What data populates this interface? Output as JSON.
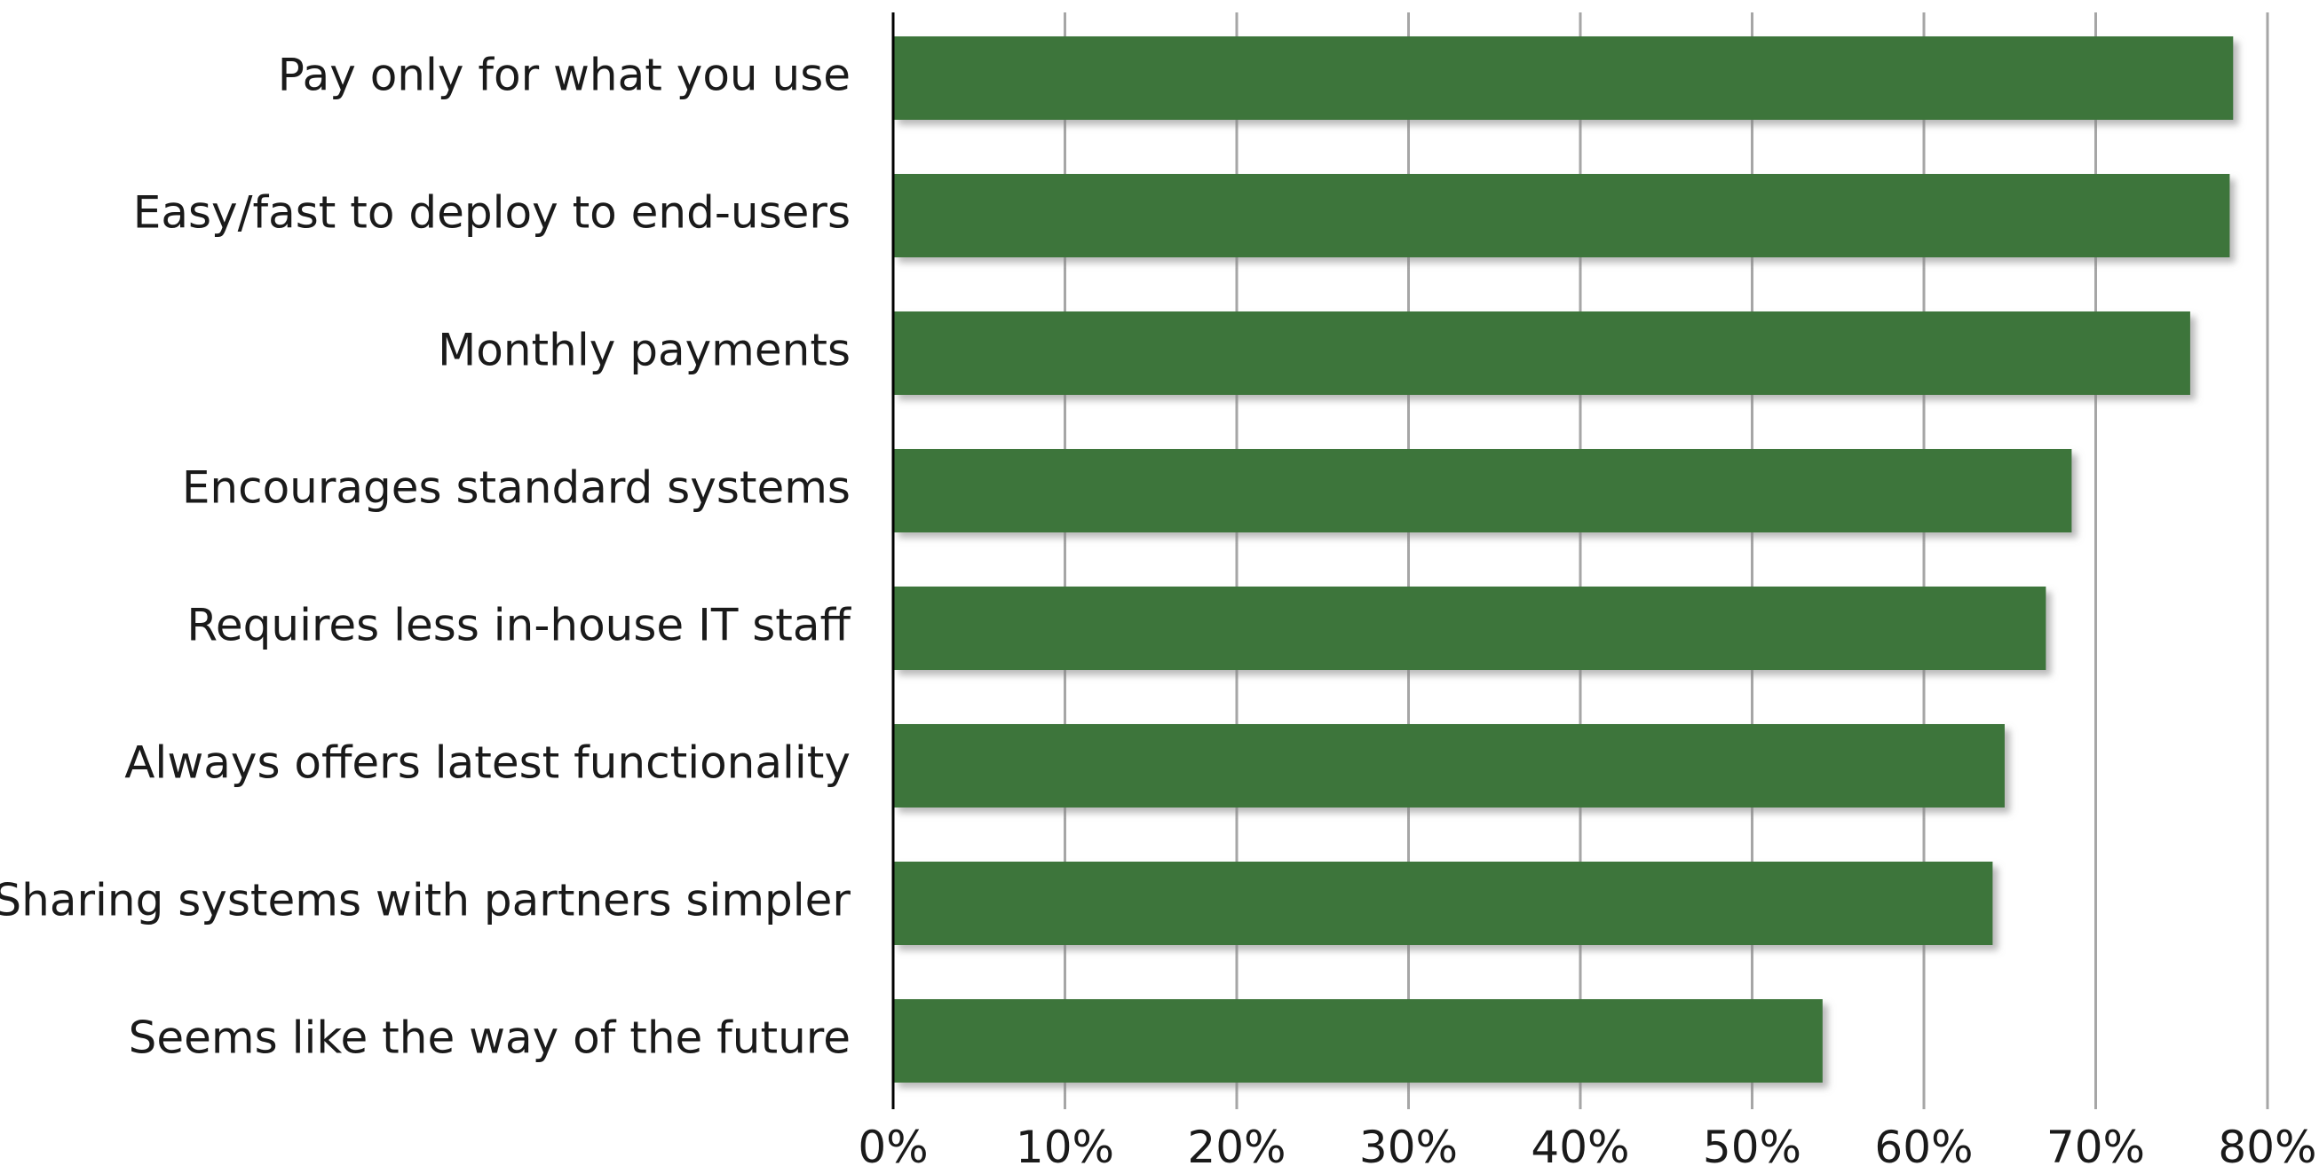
{
  "chart_data": {
    "type": "bar",
    "orientation": "horizontal",
    "categories": [
      "Pay only for what you use",
      "Easy/fast to deploy to end-users",
      "Monthly payments",
      "Encourages standard systems",
      "Requires less in-house IT staff",
      "Always offers latest functionality",
      "Sharing systems with partners simpler",
      "Seems like the way of the future"
    ],
    "values": [
      78,
      77.8,
      75.5,
      68.6,
      67.1,
      64.7,
      64.0,
      54.1
    ],
    "xlim": [
      0,
      80
    ],
    "xticks": [
      0,
      10,
      20,
      30,
      40,
      50,
      60,
      70,
      80
    ],
    "xtick_labels": [
      "0%",
      "10%",
      "20%",
      "30%",
      "40%",
      "50%",
      "60%",
      "70%",
      "80%"
    ],
    "title": "",
    "xlabel": "",
    "ylabel": "",
    "grid": "vertical",
    "legend": "none",
    "bar_color": "#3e743b",
    "bar_shadow_color": "#b0b0b0"
  }
}
